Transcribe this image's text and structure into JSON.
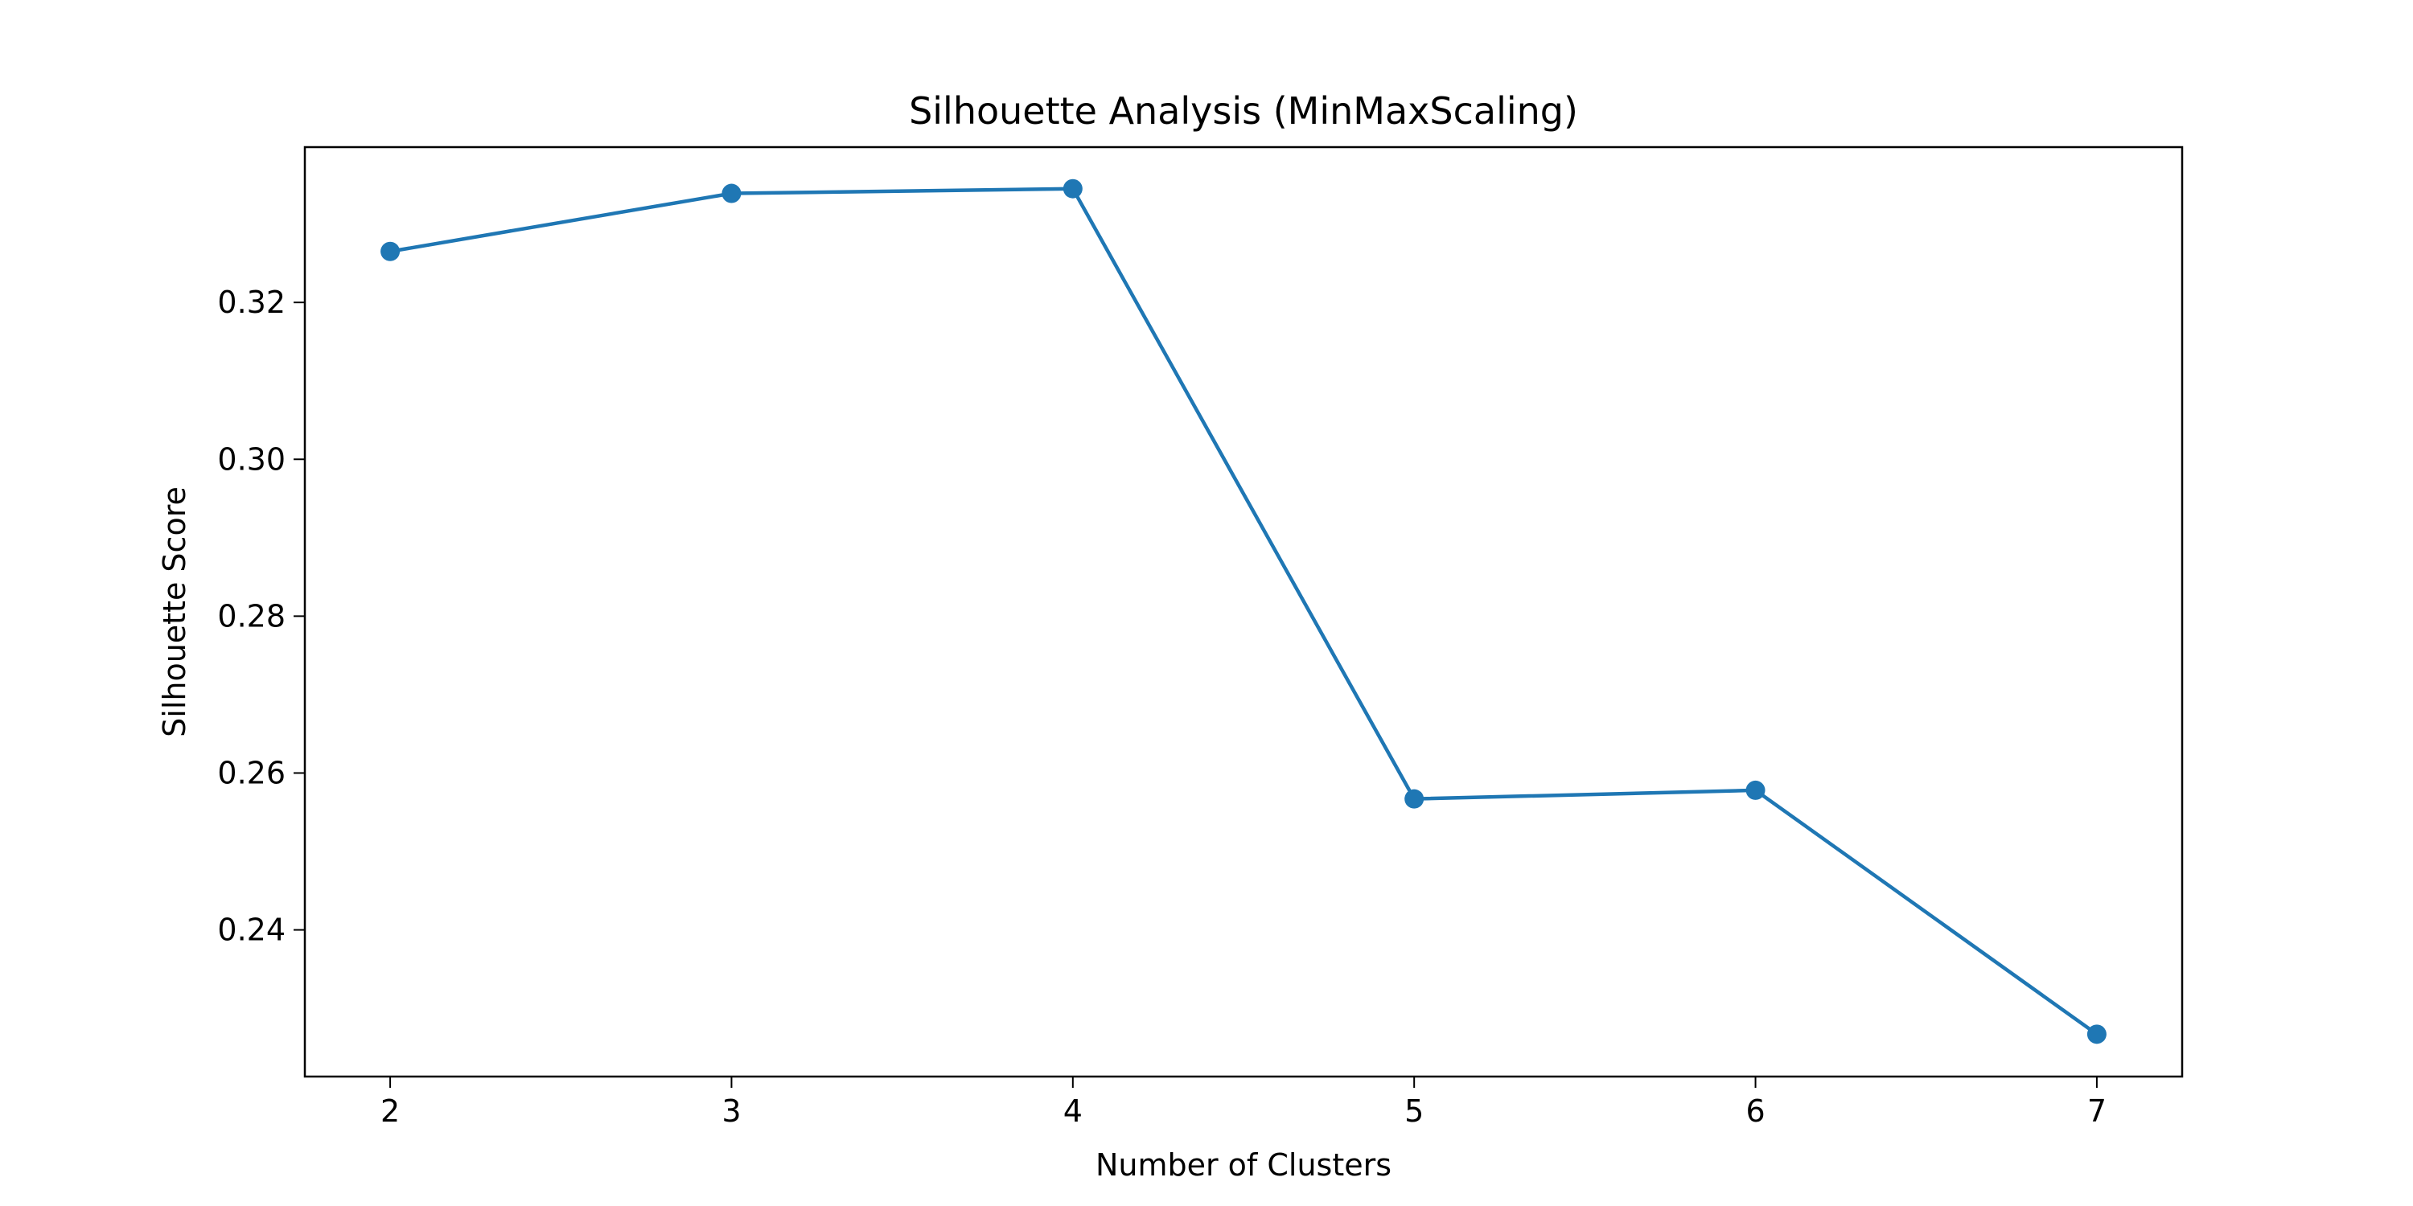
{
  "chart_data": {
    "type": "line",
    "title": "Silhouette Analysis (MinMaxScaling)",
    "xlabel": "Number of Clusters",
    "ylabel": "Silhouette Score",
    "x": [
      2,
      3,
      4,
      5,
      6,
      7
    ],
    "series": [
      {
        "values": [
          0.3265,
          0.3339,
          0.3345,
          0.2567,
          0.2578,
          0.2267
        ],
        "color": "#1f77b4",
        "marker": "circle"
      }
    ],
    "xlim": [
      1.75,
      7.25
    ],
    "ylim": [
      0.2213,
      0.3398
    ],
    "xticks": [
      2,
      3,
      4,
      5,
      6,
      7
    ],
    "xtick_labels": [
      "2",
      "3",
      "4",
      "5",
      "6",
      "7"
    ],
    "yticks": [
      0.24,
      0.26,
      0.28,
      0.3,
      0.32
    ],
    "ytick_labels": [
      "0.24",
      "0.26",
      "0.28",
      "0.30",
      "0.32"
    ],
    "grid": false,
    "legend": "none"
  }
}
